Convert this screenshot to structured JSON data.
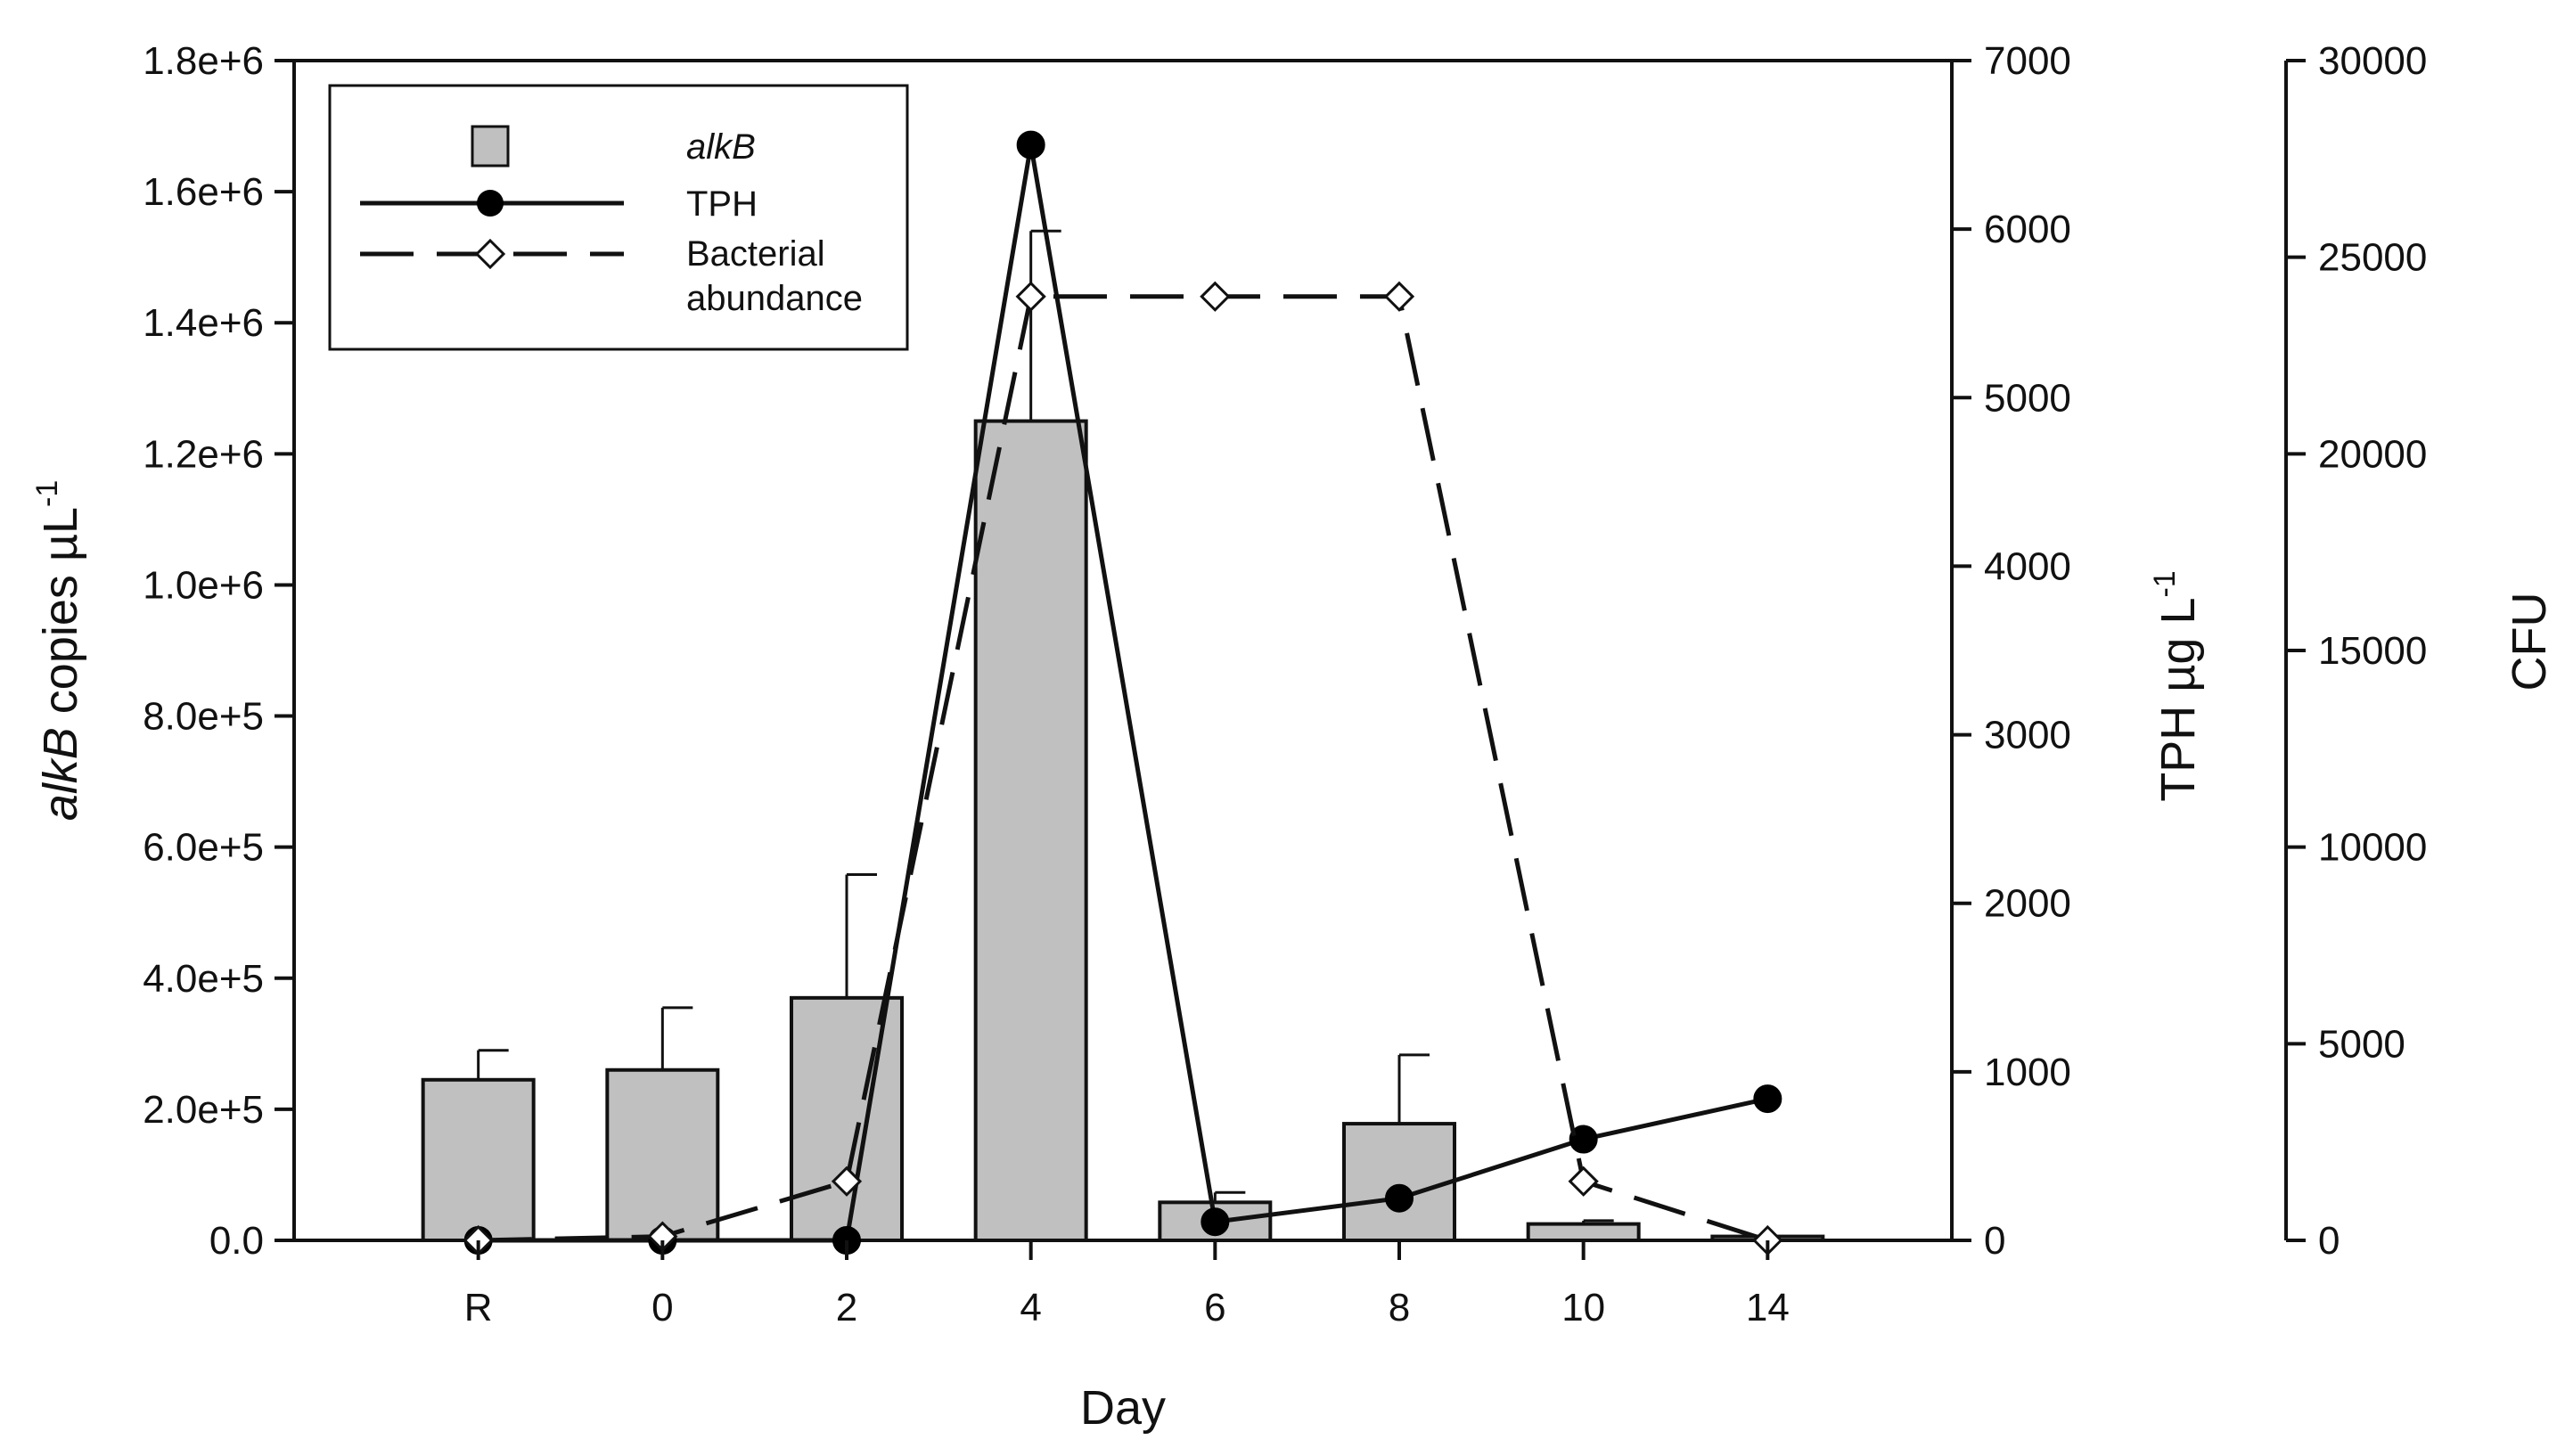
{
  "chart_data": {
    "type": "bar",
    "categories": [
      "R",
      "0",
      "2",
      "4",
      "6",
      "8",
      "10",
      "14"
    ],
    "xlabel": "Day",
    "axes": {
      "left": {
        "label_parts": [
          {
            "text": "alkB",
            "italic": true
          },
          {
            "text": " copies µL",
            "italic": false
          },
          {
            "text": "-1",
            "sup": true
          }
        ],
        "ylim": [
          0,
          1800000
        ],
        "ticks": [
          0,
          200000,
          400000,
          600000,
          800000,
          1000000,
          1200000,
          1400000,
          1600000,
          1800000
        ],
        "tick_labels": [
          "0.0",
          "2.0e+5",
          "4.0e+5",
          "6.0e+5",
          "8.0e+5",
          "1.0e+6",
          "1.2e+6",
          "1.4e+6",
          "1.6e+6",
          "1.8e+6"
        ]
      },
      "right1": {
        "label_parts": [
          {
            "text": "TPH µg L",
            "italic": false
          },
          {
            "text": "-1",
            "sup": true
          }
        ],
        "ylim": [
          0,
          7000
        ],
        "ticks": [
          0,
          1000,
          2000,
          3000,
          4000,
          5000,
          6000,
          7000
        ],
        "tick_labels": [
          "0",
          "1000",
          "2000",
          "3000",
          "4000",
          "5000",
          "6000",
          "7000"
        ]
      },
      "right2": {
        "label": "CFU",
        "ylim": [
          0,
          30000
        ],
        "ticks": [
          0,
          5000,
          10000,
          15000,
          20000,
          25000,
          30000
        ],
        "tick_labels": [
          "0",
          "5000",
          "10000",
          "15000",
          "20000",
          "25000",
          "30000"
        ]
      }
    },
    "series": [
      {
        "name": "alkB",
        "kind": "bar",
        "axis": "left",
        "values": [
          245000,
          260000,
          370000,
          1250000,
          58000,
          178000,
          25000,
          6000
        ],
        "errors": [
          45000,
          95000,
          188000,
          290000,
          15000,
          105000,
          5000,
          0
        ],
        "color": "#c0c0c0"
      },
      {
        "name": "TPH",
        "kind": "line",
        "axis": "right1",
        "style": "solid",
        "marker": "circle",
        "x_index": [
          0,
          1,
          2,
          3,
          4,
          5,
          6,
          7
        ],
        "values": [
          0,
          0,
          0,
          6500,
          110,
          250,
          600,
          840
        ]
      },
      {
        "name": "Bacterial abundance",
        "kind": "line",
        "axis": "right2",
        "style": "dashed",
        "marker": "diamond",
        "x_index": [
          0,
          1,
          2,
          3,
          4,
          5,
          6,
          7
        ],
        "values": [
          0,
          100,
          1500,
          24000,
          24000,
          24000,
          1500,
          0
        ]
      }
    ],
    "legend": {
      "position": "top-left",
      "entries": [
        {
          "label": "alkB",
          "italic": true,
          "symbol": "bar"
        },
        {
          "label": "TPH",
          "italic": false,
          "symbol": "solid-circle"
        },
        {
          "label_lines": [
            "Bacterial",
            "abundance"
          ],
          "italic": false,
          "symbol": "dashed-diamond"
        }
      ]
    },
    "grid": false
  }
}
